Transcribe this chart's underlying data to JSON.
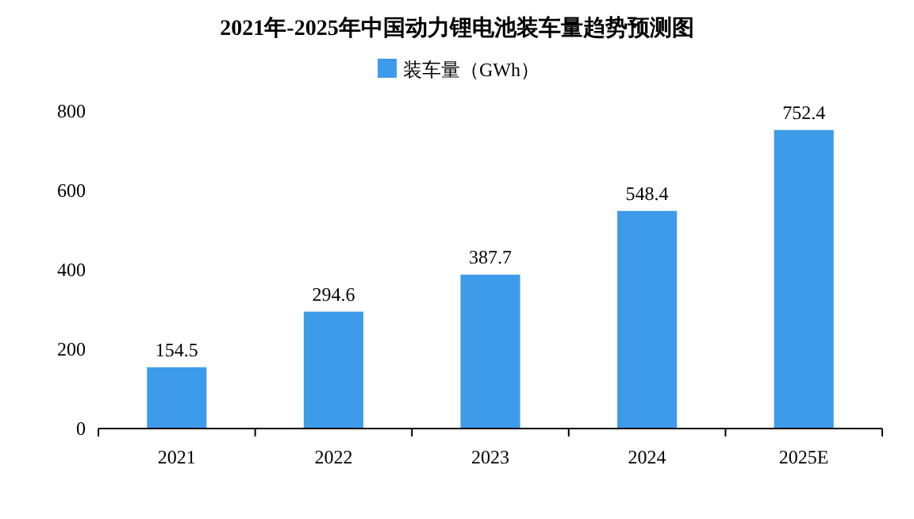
{
  "chart_data": {
    "type": "bar",
    "title": "2021年-2025年中国动力锂电池装车量趋势预测图",
    "categories": [
      "2021",
      "2022",
      "2023",
      "2024",
      "2025E"
    ],
    "series": [
      {
        "name": "装车量（GWh）",
        "color": "#3d9be9",
        "values": [
          154.5,
          294.6,
          387.7,
          548.4,
          752.4
        ]
      }
    ],
    "ylim": [
      0,
      800
    ],
    "yticks": [
      0,
      200,
      400,
      600,
      800
    ],
    "data_labels": true,
    "legend": "top"
  }
}
